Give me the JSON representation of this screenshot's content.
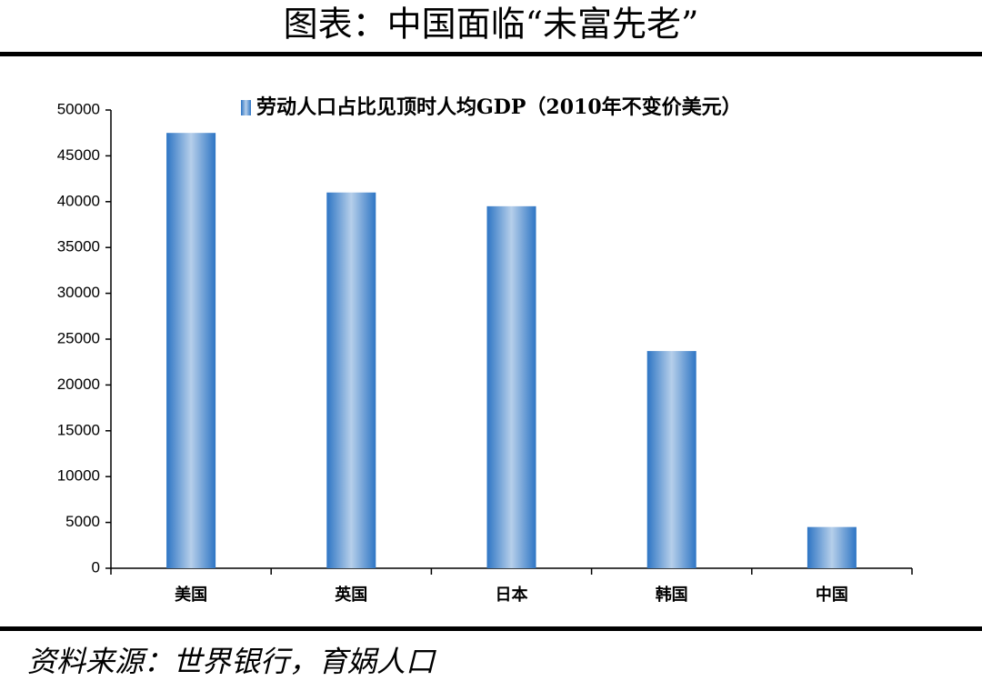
{
  "chart_data": {
    "type": "bar",
    "title": "图表：中国面临“未富先老”",
    "source": "资料来源：世界银行，育娲人口",
    "categories": [
      "美国",
      "英国",
      "日本",
      "韩国",
      "中国"
    ],
    "series": [
      {
        "name": "劳动人口占比见顶时人均GDP（2010年不变价美元）",
        "color": "#2e75c4",
        "values": [
          47500,
          41000,
          39500,
          23700,
          4500
        ]
      }
    ],
    "ylim": [
      0,
      50000
    ],
    "yticks": [
      0,
      5000,
      10000,
      15000,
      20000,
      25000,
      30000,
      35000,
      40000,
      45000,
      50000
    ]
  }
}
